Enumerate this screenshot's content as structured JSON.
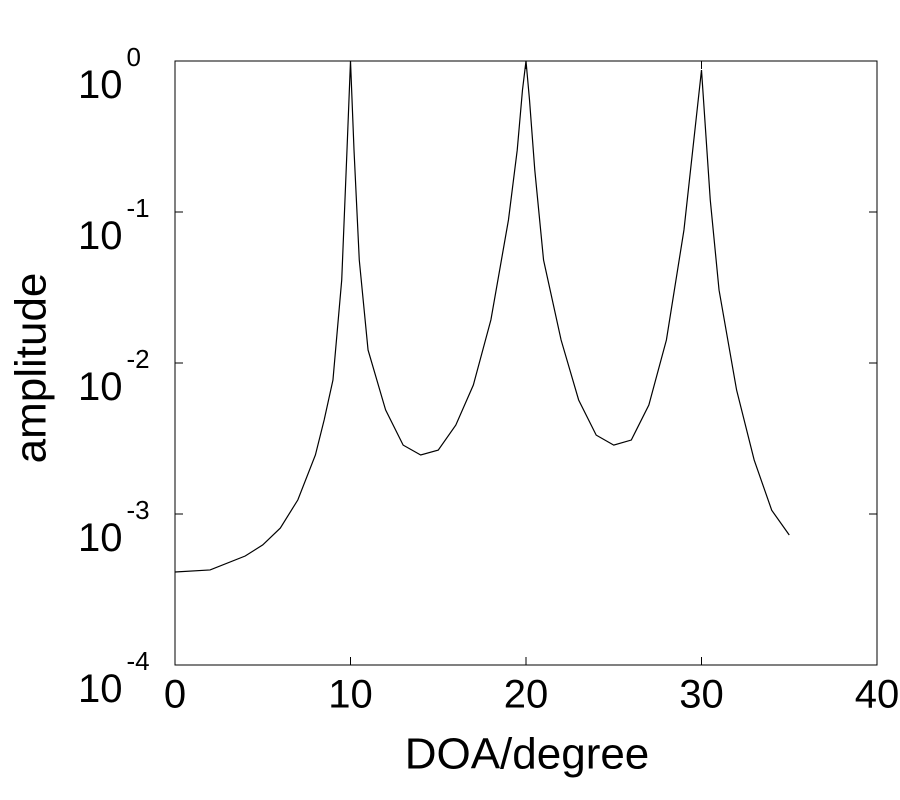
{
  "chart_data": {
    "type": "line",
    "x_label": "DOA/degree",
    "y_label": "amplitude",
    "log_y": true,
    "x": [
      0,
      2,
      4,
      5,
      6,
      7,
      8,
      8.5,
      9,
      9.5,
      9.8,
      10,
      10.2,
      10.5,
      11,
      12,
      13,
      14,
      15,
      16,
      17,
      18,
      19,
      19.5,
      19.8,
      20,
      20.2,
      20.5,
      21,
      22,
      23,
      24,
      25,
      26,
      27,
      28,
      29,
      29.5,
      30,
      30.5,
      31,
      32,
      33,
      34,
      35
    ],
    "series": [
      {
        "color": "#000000",
        "values": [
          0.000413,
          0.000426,
          0.000527,
          0.000624,
          0.000807,
          0.00124,
          0.00246,
          0.0042,
          0.00771,
          0.0355,
          0.257,
          1.0,
          0.257,
          0.0481,
          0.0122,
          0.00489,
          0.00286,
          0.00246,
          0.00265,
          0.00388,
          0.00715,
          0.0193,
          0.0885,
          0.257,
          0.643,
          1.0,
          0.552,
          0.19,
          0.0481,
          0.0142,
          0.00569,
          0.00333,
          0.00286,
          0.00309,
          0.00527,
          0.0142,
          0.076,
          0.257,
          0.871,
          0.12,
          0.0304,
          0.00662,
          0.00228,
          0.00106,
          0.000726
        ]
      }
    ],
    "xlim": [
      0,
      40
    ],
    "xticks": [
      0,
      10,
      20,
      30,
      40
    ],
    "ylim": [
      0.0001,
      1
    ],
    "yticks": [
      {
        "value": 1,
        "label": "10",
        "exponent": "0"
      },
      {
        "value": 0.1,
        "label": "10",
        "exponent": "-1"
      },
      {
        "value": 0.01,
        "label": "10",
        "exponent": "-2"
      },
      {
        "value": 0.001,
        "label": "10",
        "exponent": "-3"
      },
      {
        "value": 0.0001,
        "label": "10",
        "exponent": "-4"
      }
    ]
  }
}
